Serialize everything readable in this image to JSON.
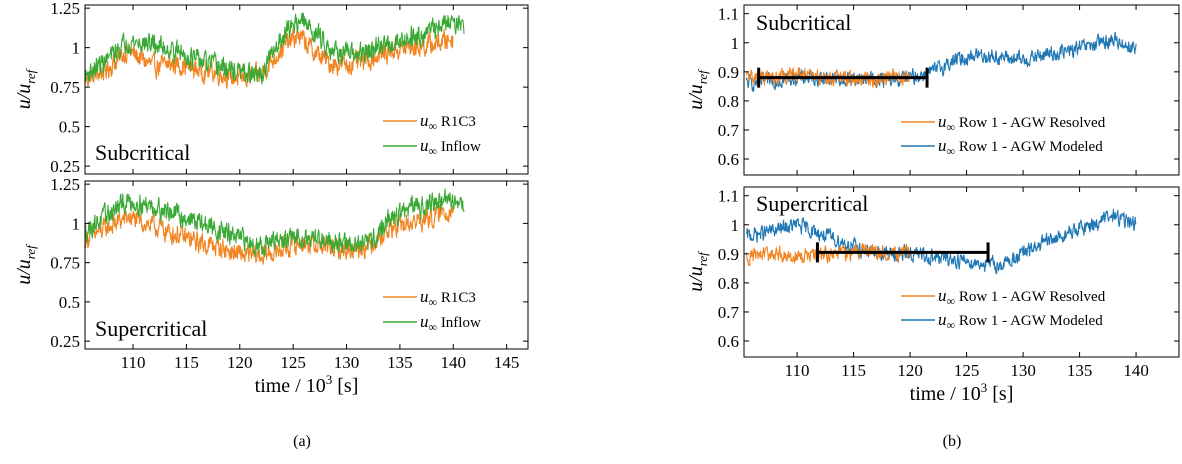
{
  "colors": {
    "orange": "#f28522",
    "green": "#39a935",
    "blue": "#1f77b4",
    "bar": "#000000"
  },
  "captions": {
    "a": "(a)",
    "b": "(b)"
  },
  "ylabel_main": "u/u",
  "ylabel_sub": "ref",
  "xlabel_main": "time / 10",
  "xlabel_sup": "3",
  "xlabel_unit": " [s]",
  "legend_prefix_main": "u",
  "legend_prefix_sub": "∞",
  "chart_data": [
    {
      "id": "a-top",
      "type": "line",
      "panel": "a",
      "annotation": "Subcritical",
      "xlim": [
        105.5,
        147
      ],
      "ylim": [
        0.2,
        1.27
      ],
      "xticks": [
        "110",
        "115",
        "120",
        "125",
        "130",
        "135",
        "140",
        "145"
      ],
      "yticks": [
        "0.25",
        "0.5",
        "0.75",
        "1",
        "1.25"
      ],
      "show_xticklabels": false,
      "legend_position": "bottom-right",
      "series": [
        {
          "name": "R1C3",
          "color": "orange",
          "x": [
            105.5,
            107.5,
            109.5,
            112,
            114,
            116,
            118,
            120,
            122,
            124,
            125.5,
            127,
            128.5,
            130,
            132,
            134,
            136,
            138,
            140
          ],
          "y": [
            0.8,
            0.86,
            0.98,
            0.88,
            0.9,
            0.86,
            0.84,
            0.8,
            0.83,
            1.0,
            1.08,
            0.97,
            0.9,
            0.89,
            0.92,
            0.98,
            1.0,
            1.02,
            1.06
          ]
        },
        {
          "name": "Inflow",
          "color": "green",
          "x": [
            105.5,
            107.5,
            109.5,
            112,
            114,
            116,
            118,
            120,
            122,
            124,
            125.5,
            127,
            128.5,
            130,
            132,
            134,
            136,
            138,
            140,
            141
          ],
          "y": [
            0.82,
            0.92,
            1.04,
            1.02,
            0.98,
            0.92,
            0.88,
            0.84,
            0.82,
            1.08,
            1.18,
            1.1,
            1.0,
            0.95,
            0.97,
            1.03,
            1.07,
            1.11,
            1.18,
            1.13
          ]
        }
      ]
    },
    {
      "id": "a-bottom",
      "type": "line",
      "panel": "a",
      "annotation": "Supercritical",
      "xlim": [
        105.5,
        147
      ],
      "ylim": [
        0.2,
        1.27
      ],
      "xticks": [
        "110",
        "115",
        "120",
        "125",
        "130",
        "135",
        "140",
        "145"
      ],
      "yticks": [
        "0.25",
        "0.5",
        "0.75",
        "1",
        "1.25"
      ],
      "show_xticklabels": true,
      "legend_position": "bottom-right",
      "series": [
        {
          "name": "R1C3",
          "color": "orange",
          "x": [
            105.5,
            107.5,
            109.5,
            112,
            114,
            116,
            118,
            120,
            122,
            124,
            126,
            128,
            130,
            132,
            134,
            136,
            138,
            140
          ],
          "y": [
            0.9,
            0.97,
            1.04,
            0.98,
            0.93,
            0.88,
            0.85,
            0.8,
            0.79,
            0.84,
            0.88,
            0.85,
            0.83,
            0.86,
            0.96,
            1.0,
            1.04,
            1.1
          ]
        },
        {
          "name": "Inflow",
          "color": "green",
          "x": [
            105.5,
            107.5,
            109.5,
            112,
            114,
            116,
            118,
            120,
            122,
            124,
            126,
            128,
            130,
            132,
            134,
            136,
            138,
            140,
            141
          ],
          "y": [
            0.95,
            1.05,
            1.14,
            1.11,
            1.06,
            1.01,
            0.96,
            0.9,
            0.86,
            0.89,
            0.92,
            0.9,
            0.87,
            0.86,
            1.03,
            1.1,
            1.13,
            1.15,
            1.12
          ]
        }
      ]
    },
    {
      "id": "b-top",
      "type": "line",
      "panel": "b",
      "annotation": "Subcritical",
      "xlim": [
        105.3,
        143.8
      ],
      "ylim": [
        0.545,
        1.13
      ],
      "xticks": [
        "110",
        "115",
        "120",
        "125",
        "130",
        "135",
        "140"
      ],
      "yticks": [
        "0.6",
        "0.7",
        "0.8",
        "0.9",
        "1",
        "1.1"
      ],
      "show_xticklabels": false,
      "legend_position": "bottom-right",
      "bar": {
        "x0": 106.6,
        "x1": 121.5,
        "y": 0.88
      },
      "series": [
        {
          "name": "Row 1 - AGW Modeled",
          "color": "blue",
          "x": [
            105.5,
            108,
            110,
            112,
            114,
            116,
            118,
            120,
            122,
            124,
            126,
            128,
            130,
            132,
            134,
            136,
            138,
            140
          ],
          "y": [
            0.86,
            0.87,
            0.88,
            0.88,
            0.87,
            0.88,
            0.87,
            0.88,
            0.9,
            0.94,
            0.96,
            0.95,
            0.94,
            0.96,
            0.97,
            0.99,
            1.01,
            0.98
          ]
        },
        {
          "name": "Row 1 - AGW Resolved",
          "color": "orange",
          "x": [
            105.5,
            108,
            110,
            112,
            114,
            116,
            118,
            120
          ],
          "y": [
            0.88,
            0.88,
            0.89,
            0.88,
            0.88,
            0.87,
            0.88,
            0.88
          ]
        }
      ]
    },
    {
      "id": "b-bottom",
      "type": "line",
      "panel": "b",
      "annotation": "Supercritical",
      "xlim": [
        105.3,
        143.8
      ],
      "ylim": [
        0.545,
        1.13
      ],
      "xticks": [
        "110",
        "115",
        "120",
        "125",
        "130",
        "135",
        "140"
      ],
      "yticks": [
        "0.6",
        "0.7",
        "0.8",
        "0.9",
        "1",
        "1.1"
      ],
      "show_xticklabels": true,
      "legend_position": "bottom-right",
      "bar": {
        "x0": 111.8,
        "x1": 126.9,
        "y": 0.905
      },
      "series": [
        {
          "name": "Row 1 - AGW Modeled",
          "color": "blue",
          "x": [
            105.5,
            108,
            110,
            112,
            114,
            116,
            118,
            120,
            122,
            124,
            126,
            128,
            130,
            132,
            134,
            136,
            138,
            140
          ],
          "y": [
            0.96,
            0.98,
            1.0,
            0.97,
            0.94,
            0.91,
            0.9,
            0.9,
            0.89,
            0.88,
            0.87,
            0.86,
            0.9,
            0.94,
            0.97,
            1.0,
            1.03,
            1.0
          ]
        },
        {
          "name": "Row 1 - AGW Resolved",
          "color": "orange",
          "x": [
            105.5,
            108,
            110,
            112,
            114,
            116,
            118,
            120
          ],
          "y": [
            0.89,
            0.9,
            0.89,
            0.9,
            0.9,
            0.91,
            0.9,
            0.9
          ]
        }
      ]
    }
  ]
}
